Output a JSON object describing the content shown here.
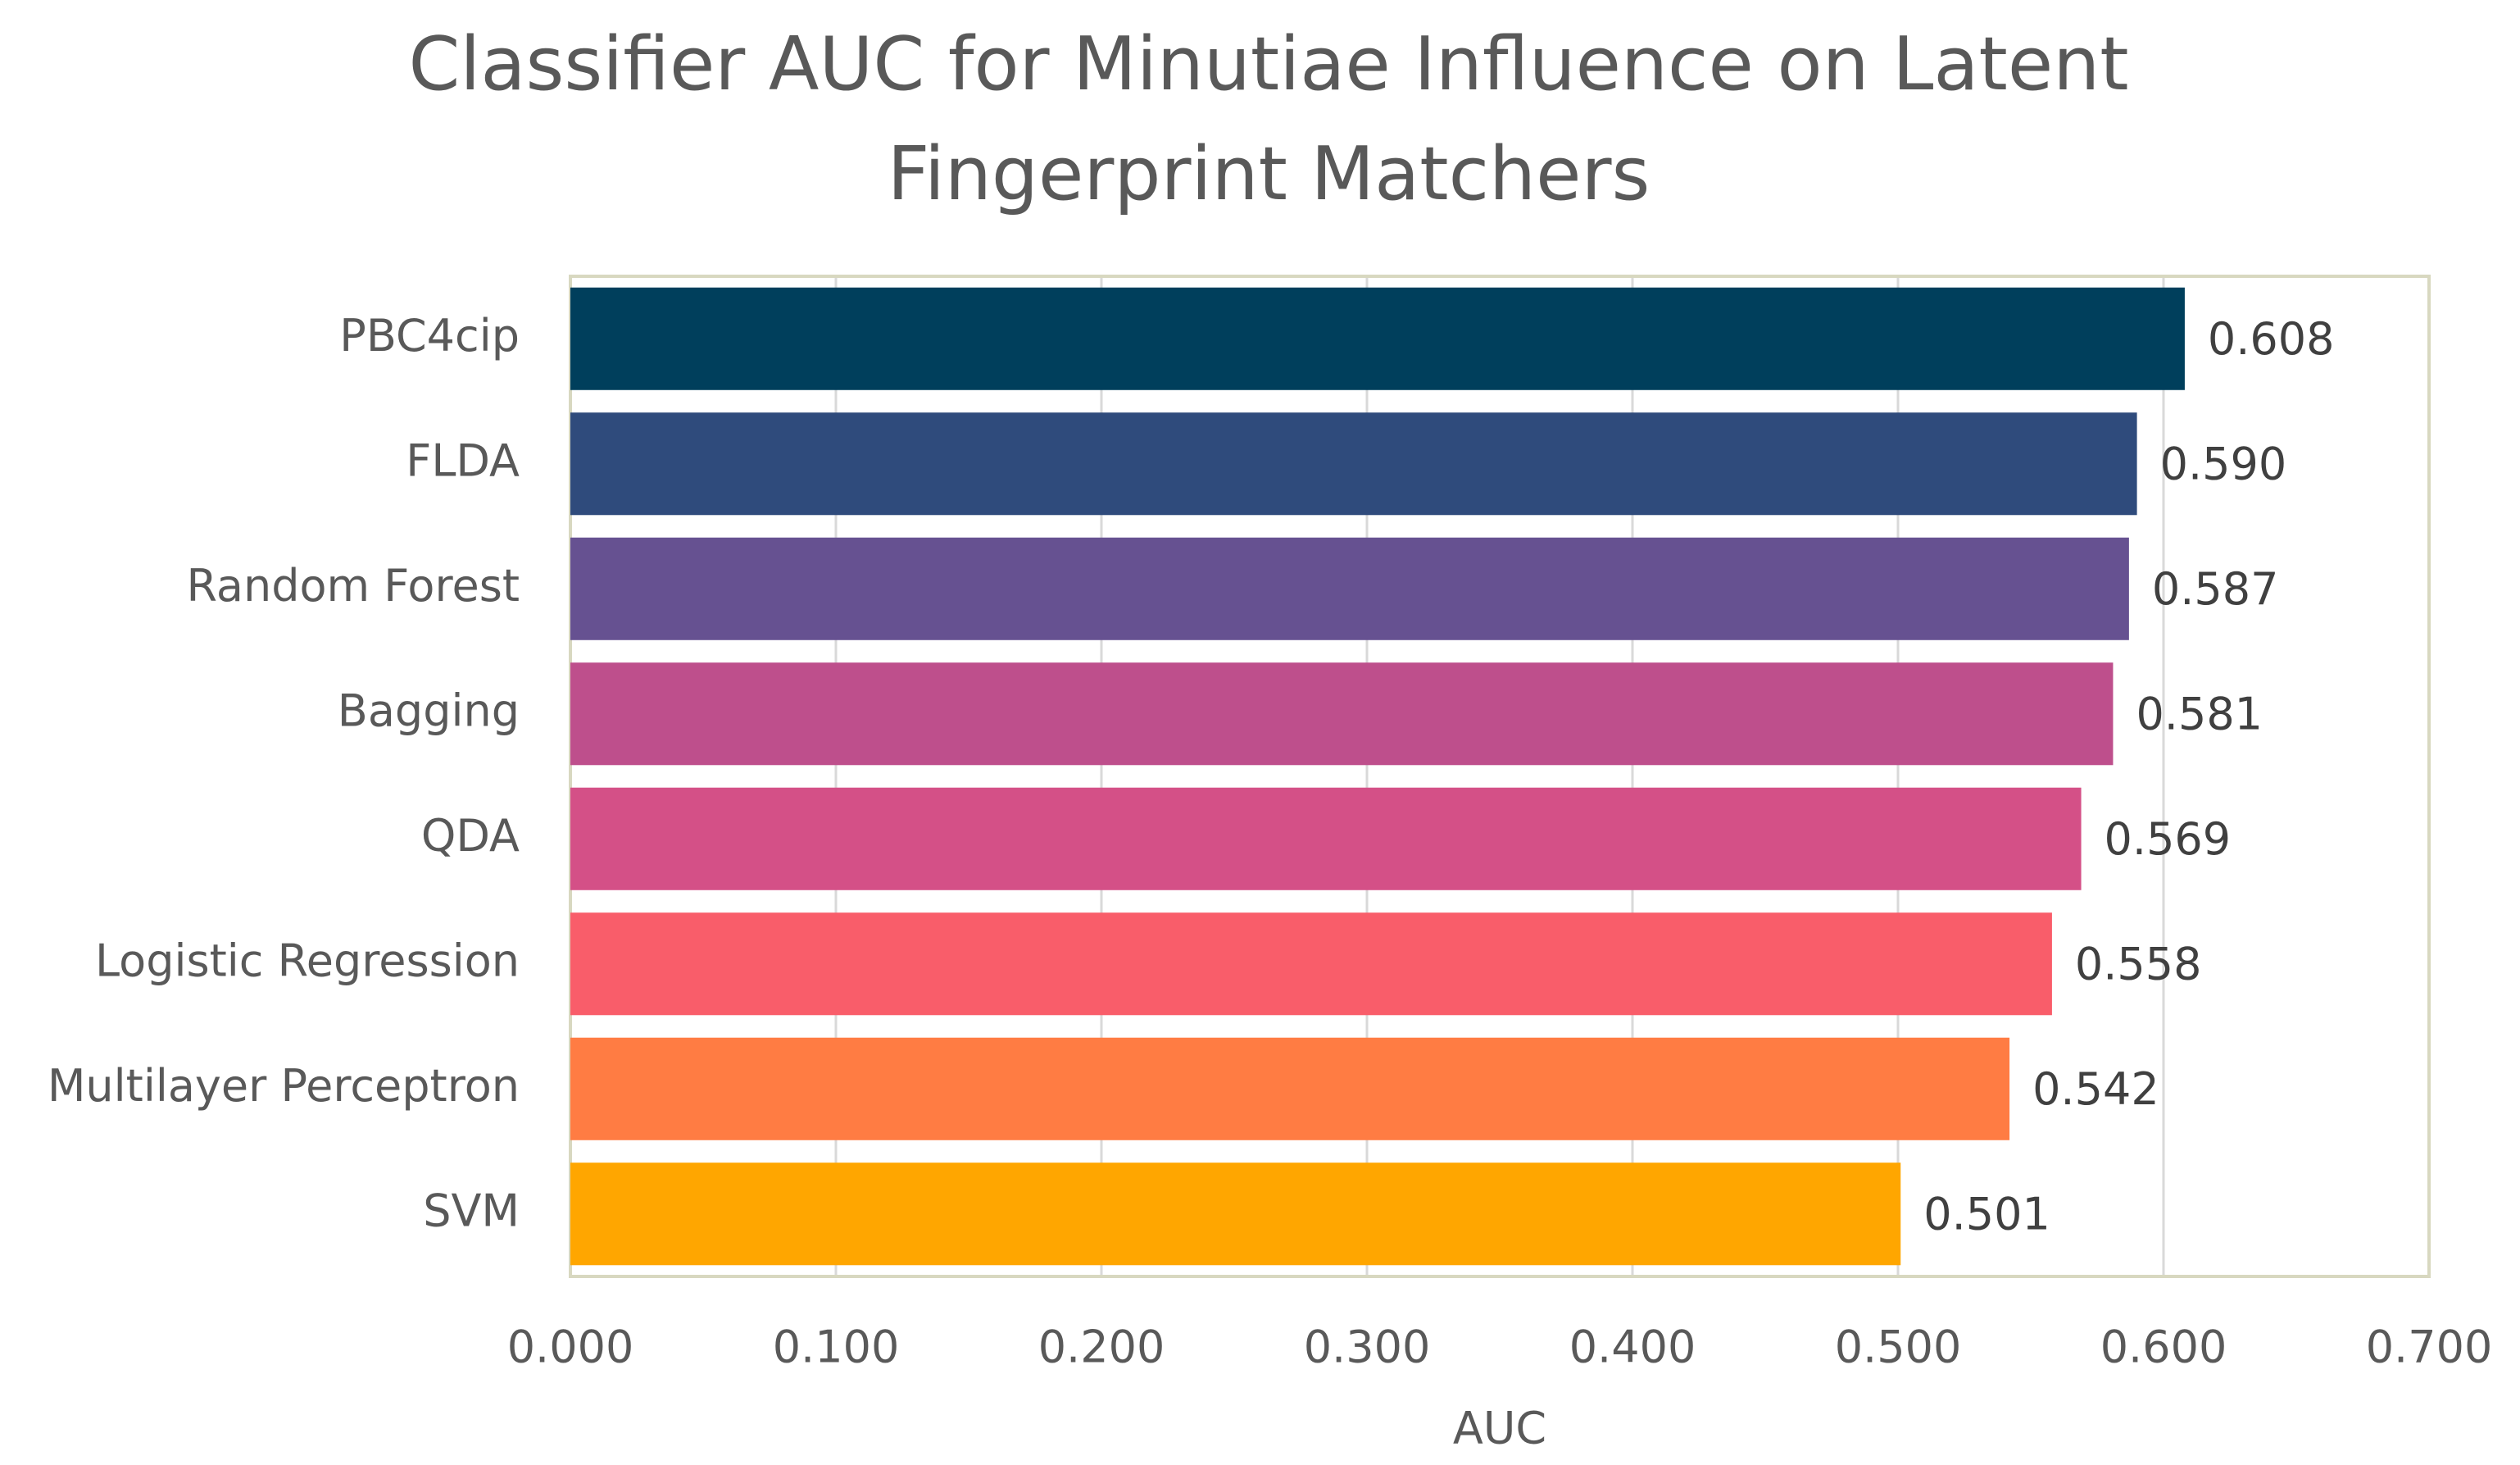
{
  "chart_data": {
    "type": "hbar",
    "title": "Classifier AUC for Minutiae Influence on Latent Fingerprint Matchers",
    "xlabel": "AUC",
    "categories": [
      "PBC4cip",
      "FLDA",
      "Random Forest",
      "Bagging",
      "QDA",
      "Logistic Regression",
      "Multilayer Perceptron",
      "SVM"
    ],
    "values": [
      0.608,
      0.59,
      0.587,
      0.581,
      0.569,
      0.558,
      0.542,
      0.501
    ],
    "value_labels": [
      "0.608",
      "0.590",
      "0.587",
      "0.581",
      "0.569",
      "0.558",
      "0.542",
      "0.501"
    ],
    "colors": [
      "#003f5c",
      "#2f4b7c",
      "#665191",
      "#be4f8c",
      "#d45087",
      "#f95d6a",
      "#ff7c43",
      "#ffa600"
    ],
    "xlim": [
      0,
      0.7
    ],
    "xticks": [
      {
        "value": 0,
        "label": "0.000"
      },
      {
        "value": 0.1,
        "label": "0.100"
      },
      {
        "value": 0.2,
        "label": "0.200"
      },
      {
        "value": 0.3,
        "label": "0.300"
      },
      {
        "value": 0.4,
        "label": "0.400"
      },
      {
        "value": 0.5,
        "label": "0.500"
      },
      {
        "value": 0.6,
        "label": "0.600"
      },
      {
        "value": 0.7,
        "label": "0.700"
      }
    ],
    "grid": true
  }
}
